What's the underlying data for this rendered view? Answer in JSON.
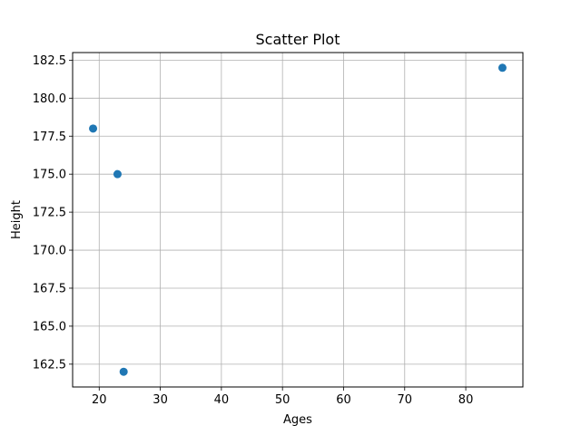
{
  "chart_data": {
    "type": "scatter",
    "title": "Scatter Plot",
    "xlabel": "Ages",
    "ylabel": "Height",
    "xlim": [
      15.65,
      89.35
    ],
    "ylim": [
      161,
      183
    ],
    "xticks": [
      20,
      30,
      40,
      50,
      60,
      70,
      80
    ],
    "yticks": [
      162.5,
      165.0,
      167.5,
      170.0,
      172.5,
      175.0,
      177.5,
      180.0,
      182.5
    ],
    "grid": true,
    "marker_color": "#1f77b4",
    "points": [
      {
        "x": 19,
        "y": 178
      },
      {
        "x": 23,
        "y": 175
      },
      {
        "x": 24,
        "y": 162
      },
      {
        "x": 86,
        "y": 182
      }
    ]
  }
}
